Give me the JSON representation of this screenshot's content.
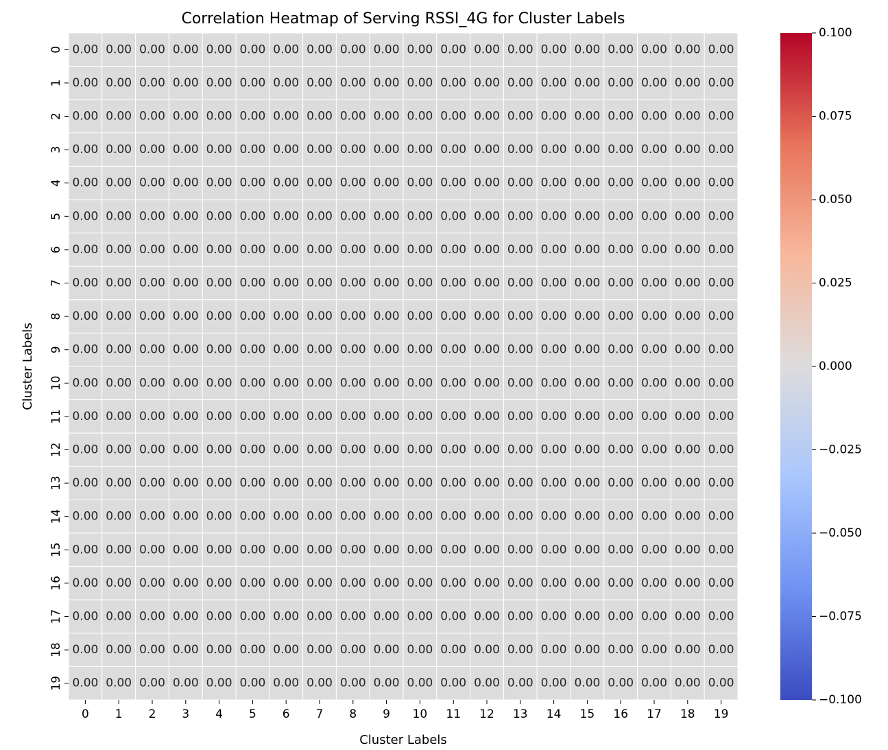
{
  "chart_data": {
    "type": "heatmap",
    "title": "Correlation Heatmap of Serving RSSI_4G for Cluster Labels",
    "xlabel": "Cluster Labels",
    "ylabel": "Cluster Labels",
    "x_categories": [
      "0",
      "1",
      "2",
      "3",
      "4",
      "5",
      "6",
      "7",
      "8",
      "9",
      "10",
      "11",
      "12",
      "13",
      "14",
      "15",
      "16",
      "17",
      "18",
      "19"
    ],
    "y_categories": [
      "0",
      "1",
      "2",
      "3",
      "4",
      "5",
      "6",
      "7",
      "8",
      "9",
      "10",
      "11",
      "12",
      "13",
      "14",
      "15",
      "16",
      "17",
      "18",
      "19"
    ],
    "values": [
      [
        0,
        0,
        0,
        0,
        0,
        0,
        0,
        0,
        0,
        0,
        0,
        0,
        0,
        0,
        0,
        0,
        0,
        0,
        0,
        0
      ],
      [
        0,
        0,
        0,
        0,
        0,
        0,
        0,
        0,
        0,
        0,
        0,
        0,
        0,
        0,
        0,
        0,
        0,
        0,
        0,
        0
      ],
      [
        0,
        0,
        0,
        0,
        0,
        0,
        0,
        0,
        0,
        0,
        0,
        0,
        0,
        0,
        0,
        0,
        0,
        0,
        0,
        0
      ],
      [
        0,
        0,
        0,
        0,
        0,
        0,
        0,
        0,
        0,
        0,
        0,
        0,
        0,
        0,
        0,
        0,
        0,
        0,
        0,
        0
      ],
      [
        0,
        0,
        0,
        0,
        0,
        0,
        0,
        0,
        0,
        0,
        0,
        0,
        0,
        0,
        0,
        0,
        0,
        0,
        0,
        0
      ],
      [
        0,
        0,
        0,
        0,
        0,
        0,
        0,
        0,
        0,
        0,
        0,
        0,
        0,
        0,
        0,
        0,
        0,
        0,
        0,
        0
      ],
      [
        0,
        0,
        0,
        0,
        0,
        0,
        0,
        0,
        0,
        0,
        0,
        0,
        0,
        0,
        0,
        0,
        0,
        0,
        0,
        0
      ],
      [
        0,
        0,
        0,
        0,
        0,
        0,
        0,
        0,
        0,
        0,
        0,
        0,
        0,
        0,
        0,
        0,
        0,
        0,
        0,
        0
      ],
      [
        0,
        0,
        0,
        0,
        0,
        0,
        0,
        0,
        0,
        0,
        0,
        0,
        0,
        0,
        0,
        0,
        0,
        0,
        0,
        0
      ],
      [
        0,
        0,
        0,
        0,
        0,
        0,
        0,
        0,
        0,
        0,
        0,
        0,
        0,
        0,
        0,
        0,
        0,
        0,
        0,
        0
      ],
      [
        0,
        0,
        0,
        0,
        0,
        0,
        0,
        0,
        0,
        0,
        0,
        0,
        0,
        0,
        0,
        0,
        0,
        0,
        0,
        0
      ],
      [
        0,
        0,
        0,
        0,
        0,
        0,
        0,
        0,
        0,
        0,
        0,
        0,
        0,
        0,
        0,
        0,
        0,
        0,
        0,
        0
      ],
      [
        0,
        0,
        0,
        0,
        0,
        0,
        0,
        0,
        0,
        0,
        0,
        0,
        0,
        0,
        0,
        0,
        0,
        0,
        0,
        0
      ],
      [
        0,
        0,
        0,
        0,
        0,
        0,
        0,
        0,
        0,
        0,
        0,
        0,
        0,
        0,
        0,
        0,
        0,
        0,
        0,
        0
      ],
      [
        0,
        0,
        0,
        0,
        0,
        0,
        0,
        0,
        0,
        0,
        0,
        0,
        0,
        0,
        0,
        0,
        0,
        0,
        0,
        0
      ],
      [
        0,
        0,
        0,
        0,
        0,
        0,
        0,
        0,
        0,
        0,
        0,
        0,
        0,
        0,
        0,
        0,
        0,
        0,
        0,
        0
      ],
      [
        0,
        0,
        0,
        0,
        0,
        0,
        0,
        0,
        0,
        0,
        0,
        0,
        0,
        0,
        0,
        0,
        0,
        0,
        0,
        0
      ],
      [
        0,
        0,
        0,
        0,
        0,
        0,
        0,
        0,
        0,
        0,
        0,
        0,
        0,
        0,
        0,
        0,
        0,
        0,
        0,
        0
      ],
      [
        0,
        0,
        0,
        0,
        0,
        0,
        0,
        0,
        0,
        0,
        0,
        0,
        0,
        0,
        0,
        0,
        0,
        0,
        0,
        0
      ],
      [
        0,
        0,
        0,
        0,
        0,
        0,
        0,
        0,
        0,
        0,
        0,
        0,
        0,
        0,
        0,
        0,
        0,
        0,
        0,
        0
      ]
    ],
    "value_format": "0.00",
    "colormap": "coolwarm",
    "vmin": -0.1,
    "vmax": 0.1,
    "colorbar": {
      "placement": "right",
      "ticks": [
        0.1,
        0.075,
        0.05,
        0.025,
        0.0,
        -0.025,
        -0.05,
        -0.075,
        -0.1
      ],
      "tick_labels": [
        "0.100",
        "0.075",
        "0.050",
        "0.025",
        "0.000",
        "−0.025",
        "−0.050",
        "−0.075",
        "−0.100"
      ]
    },
    "cell_color": "#dddcdc",
    "gridline_color": "#ffffff",
    "colormap_stops": [
      "#3b4cc0",
      "#6f92f3",
      "#aac7fd",
      "#dddcdc",
      "#f7b89c",
      "#e7745b",
      "#b40426"
    ],
    "grid": true
  }
}
